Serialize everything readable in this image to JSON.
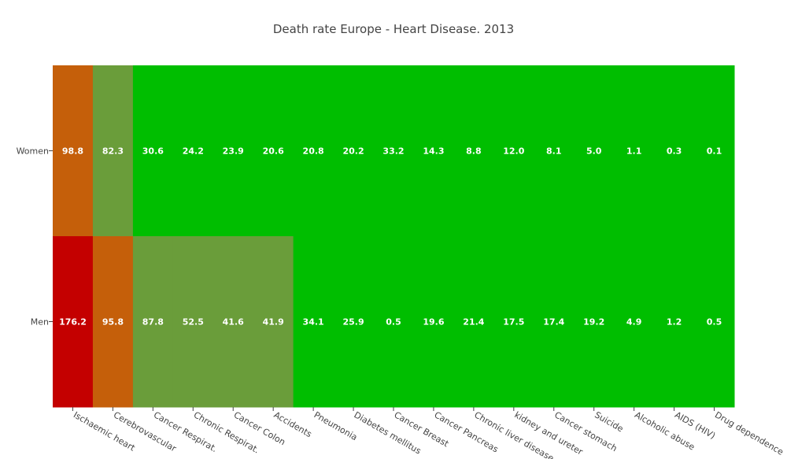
{
  "chart_data": {
    "type": "heatmap",
    "title": "Death rate Europe - Heart Disease. 2013",
    "x_categories": [
      "Ischaemic heart",
      "Cerebrovascular",
      "Cancer Respirat.",
      "Chronic Respirat.",
      "Cancer Colon",
      "Accidents",
      "Pneumonia",
      "Diabetes mellitus",
      "Cancer Breast",
      "Cancer Pancreas",
      "Chronic liver disease",
      "kidney and ureter",
      "Cancer stomach",
      "Suicide",
      "Alcoholic abuse",
      "AIDS (HIV)",
      "Drug dependence"
    ],
    "y_categories": [
      "Women",
      "Men"
    ],
    "values": [
      [
        98.8,
        82.3,
        30.6,
        24.2,
        23.9,
        20.6,
        20.8,
        20.2,
        33.2,
        14.3,
        8.8,
        12.0,
        8.1,
        5.0,
        1.1,
        0.3,
        0.1
      ],
      [
        176.2,
        95.8,
        87.8,
        52.5,
        41.6,
        41.9,
        34.1,
        25.9,
        0.5,
        19.6,
        21.4,
        17.5,
        17.4,
        19.2,
        4.9,
        1.2,
        0.5
      ]
    ],
    "labels": [
      [
        "98.8",
        "82.3",
        "30.6",
        "24.2",
        "23.9",
        "20.6",
        "20.8",
        "20.2",
        "33.2",
        "14.3",
        "8.8",
        "12.0",
        "8.1",
        "5.0",
        "1.1",
        "0.3",
        "0.1"
      ],
      [
        "176.2",
        "95.8",
        "87.8",
        "52.5",
        "41.6",
        "41.9",
        "34.1",
        "25.9",
        "0.5",
        "19.6",
        "21.4",
        "17.5",
        "17.4",
        "19.2",
        "4.9",
        "1.2",
        "0.5"
      ]
    ],
    "colorscale": [
      {
        "max": 40,
        "color": "#00be00"
      },
      {
        "max": 90,
        "color": "#6a9d3a"
      },
      {
        "max": 150,
        "color": "#c55f0a"
      },
      {
        "max": 999,
        "color": "#c40000"
      }
    ],
    "grid": false,
    "legend": "none"
  }
}
